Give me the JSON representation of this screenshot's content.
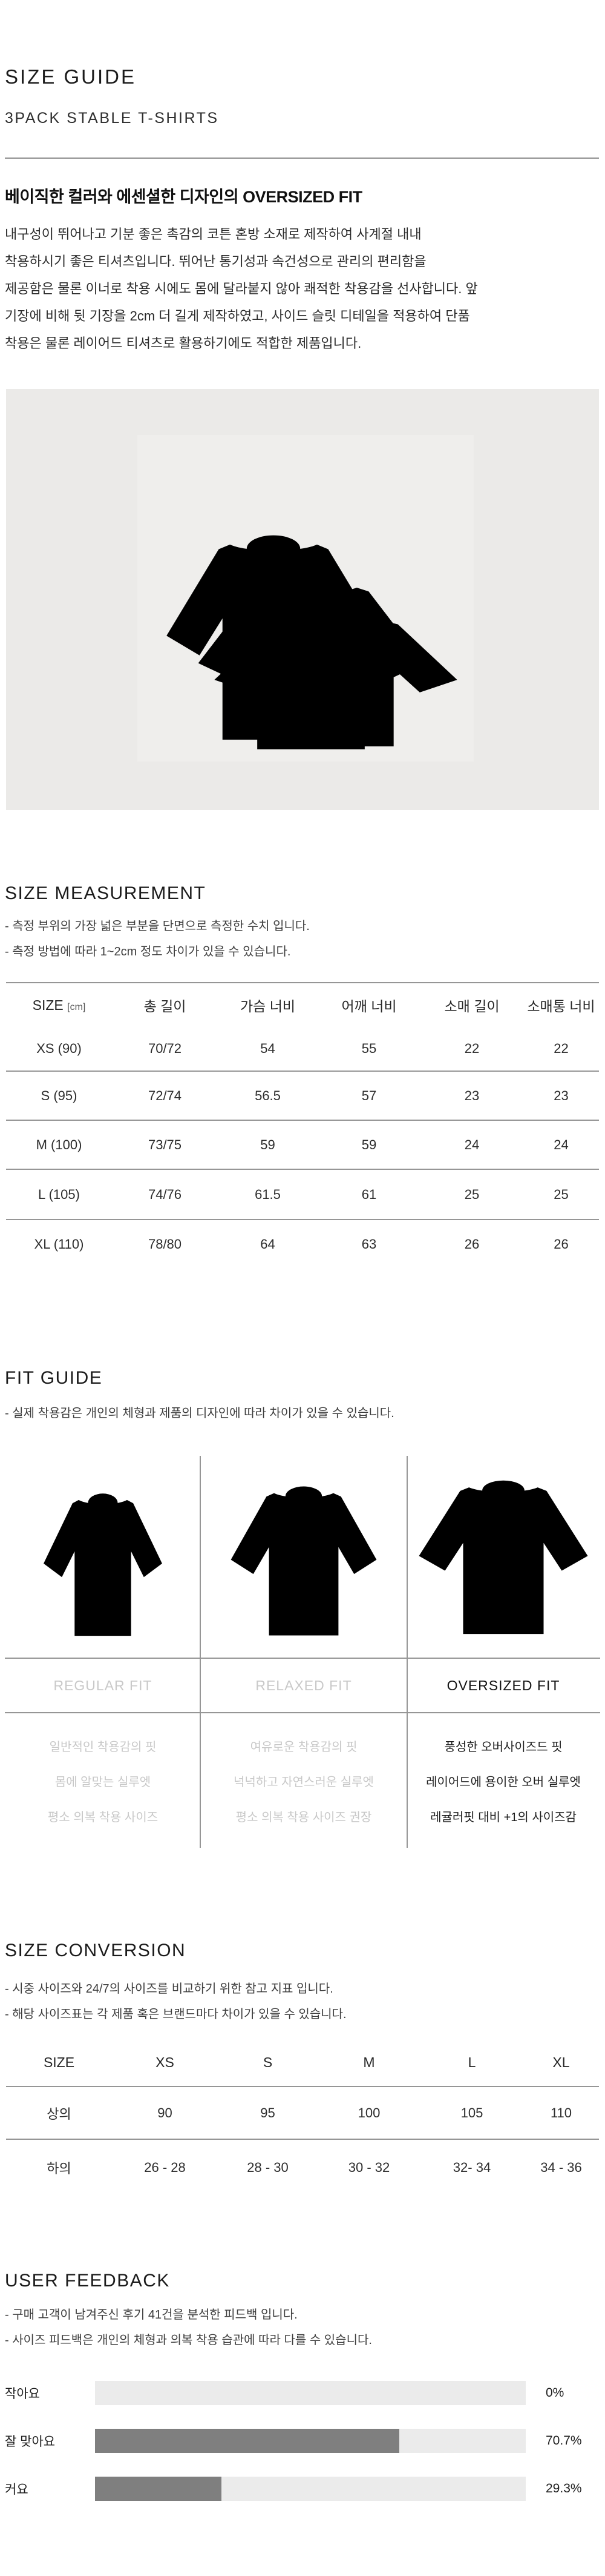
{
  "header": {
    "title": "SIZE GUIDE",
    "subtitle": "3PACK STABLE T-SHIRTS"
  },
  "intro": {
    "heading": "베이직한 컬러와 에센셜한 디자인의 OVERSIZED FIT",
    "paragraph_lines": [
      "내구성이 뛰어나고 기분 좋은 촉감의 코튼 혼방 소재로 제작하여 사계절 내내",
      "착용하시기 좋은 티셔츠입니다. 뛰어난 통기성과 속건성으로 관리의 편리함을",
      "제공함은 물론 이너로 착용 시에도 몸에 달라붙지 않아 쾌적한 착용감을 선사합니다. 앞",
      "기장에 비해 뒷 기장을 2cm 더 길게 제작하였고, 사이드 슬릿 디테일을 적용하여 단품",
      "착용은 물론 레이어드 티셔츠로 활용하기에도 적합한 제품입니다."
    ]
  },
  "product_photo": {
    "shirt_colors": [
      "#fdfdfc",
      "#a6a5a3",
      "#181818"
    ]
  },
  "size_measurement": {
    "title": "SIZE MEASUREMENT",
    "notes": [
      "- 측정 부위의 가장 넓은 부분을 단면으로 측정한 수치 입니다.",
      "- 측정 방법에 따라 1~2cm 정도 차이가 있을 수 있습니다."
    ],
    "table": {
      "header_size": "SIZE",
      "header_unit": "[cm]",
      "headers": [
        "총 길이",
        "가슴 너비",
        "어깨 너비",
        "소매 길이",
        "소매통 너비"
      ],
      "rows": [
        {
          "cells": [
            "XS (90)",
            "70/72",
            "54",
            "55",
            "22",
            "22"
          ]
        },
        {
          "cells": [
            "S (95)",
            "72/74",
            "56.5",
            "57",
            "23",
            "23"
          ]
        },
        {
          "cells": [
            "M (100)",
            "73/75",
            "59",
            "59",
            "24",
            "24"
          ]
        },
        {
          "cells": [
            "L (105)",
            "74/76",
            "61.5",
            "61",
            "25",
            "25"
          ]
        },
        {
          "cells": [
            "XL (110)",
            "78/80",
            "64",
            "63",
            "26",
            "26"
          ]
        }
      ]
    }
  },
  "fit_guide": {
    "title": "FIT GUIDE",
    "note": "- 실제 착용감은 개인의 체형과 제품의 디자인에 따라 차이가 있을 수 있습니다.",
    "columns": [
      {
        "label": "REGULAR FIT",
        "emphasis": "muted",
        "descriptions": [
          "일반적인 착용감의 핏",
          "몸에 알맞는 실루엣",
          "평소 의복 착용 사이즈"
        ]
      },
      {
        "label": "RELAXED FIT",
        "emphasis": "muted",
        "descriptions": [
          "여유로운 착용감의 핏",
          "넉넉하고 자연스러운 실루엣",
          "평소 의복 착용 사이즈 권장"
        ]
      },
      {
        "label": "OVERSIZED FIT",
        "emphasis": "strong",
        "descriptions": [
          "풍성한 오버사이즈드 핏",
          "레이어드에 용이한 오버 실루엣",
          "레귤러핏 대비 +1의 사이즈감"
        ]
      }
    ]
  },
  "size_conversion": {
    "title": "SIZE CONVERSION",
    "notes": [
      "- 시중 사이즈와 24/7의 사이즈를 비교하기 위한 참고 지표 입니다.",
      "- 해당 사이즈표는 각 제품 혹은 브랜드마다 차이가 있을 수 있습니다."
    ],
    "table": {
      "headers": [
        "SIZE",
        "XS",
        "S",
        "M",
        "L",
        "XL"
      ],
      "rows": [
        {
          "cells": [
            "상의",
            "90",
            "95",
            "100",
            "105",
            "110"
          ]
        },
        {
          "cells": [
            "하의",
            "26 - 28",
            "28 - 30",
            "30 - 32",
            "32- 34",
            "34 - 36"
          ]
        }
      ]
    }
  },
  "user_feedback": {
    "title": "USER FEEDBACK",
    "notes": [
      "- 구매 고객이 남겨주신 후기 41건을 분석한 피드백 입니다.",
      "- 사이즈 피드백은 개인의 체형과 의복 착용 습관에 따라 다를 수 있습니다."
    ],
    "bars": [
      {
        "label": "작아요",
        "value": "0%",
        "percent": 0
      },
      {
        "label": "잘 맞아요",
        "value": "70.7%",
        "percent": 70.7
      },
      {
        "label": "커요",
        "value": "29.3%",
        "percent": 29.3
      }
    ]
  },
  "colors": {
    "rule_line": "#969696",
    "bar_fill": "#7f7f7f",
    "bar_track": "#ebebeb",
    "muted_text": "#c9c9c9",
    "photo_background": "#ebeae8"
  }
}
